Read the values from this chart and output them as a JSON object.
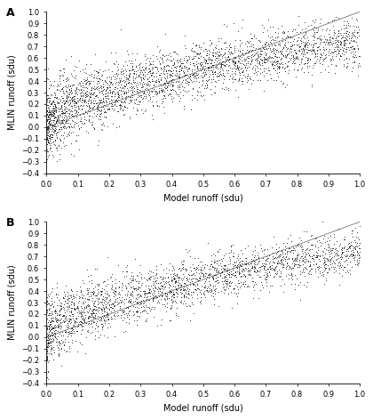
{
  "title_A": "A",
  "title_B": "B",
  "xlabel": "Model runoff (sdu)",
  "ylabel": "MLIN runoff (sdu)",
  "xlim": [
    0.0,
    1.0
  ],
  "ylim_A": [
    -0.4,
    1.0
  ],
  "ylim_B": [
    -0.4,
    1.0
  ],
  "yticks": [
    -0.4,
    -0.3,
    -0.2,
    -0.1,
    0.0,
    0.1,
    0.2,
    0.3,
    0.4,
    0.5,
    0.6,
    0.7,
    0.8,
    0.9,
    1.0
  ],
  "xticks": [
    0.0,
    0.1,
    0.2,
    0.3,
    0.4,
    0.5,
    0.6,
    0.7,
    0.8,
    0.9,
    1.0
  ],
  "scatter_color": "#222222",
  "line_color": "#888888",
  "marker_size": 2.0,
  "n_points_A": 3000,
  "n_points_B": 2500,
  "seed_A": 42,
  "seed_B": 99,
  "background_color": "#ffffff",
  "label_fontsize": 7,
  "tick_fontsize": 6,
  "panel_label_fontsize": 9,
  "curve_power_A": 0.55,
  "curve_scale_A": 0.75,
  "noise_base_A": 0.1,
  "noise_decay_A": 0.06,
  "curve_power_B": 0.58,
  "curve_scale_B": 0.74,
  "noise_base_B": 0.09,
  "noise_decay_B": 0.05
}
